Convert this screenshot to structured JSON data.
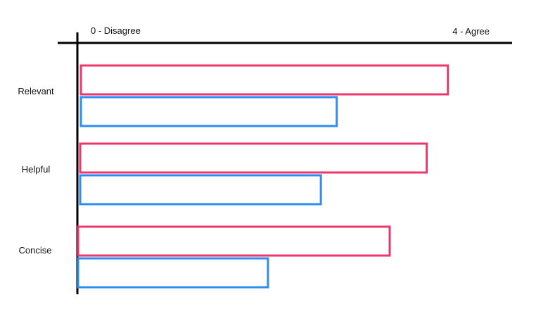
{
  "chart_data": {
    "type": "bar",
    "orientation": "horizontal",
    "categories": [
      "Relevant",
      "Helpful",
      "Concise"
    ],
    "series": [
      {
        "values": [
          3.5,
          3.3,
          2.95
        ],
        "color": "#f0356c"
      },
      {
        "values": [
          2.45,
          2.3,
          1.8
        ],
        "color": "#2b8ef0"
      }
    ],
    "xlim": [
      0,
      4
    ],
    "xtick_labels": {
      "min": "0 - Disagree",
      "max": "4 - Agree"
    },
    "axis_position": "top",
    "bar_style": "outline",
    "grid": false,
    "legend": "none"
  }
}
